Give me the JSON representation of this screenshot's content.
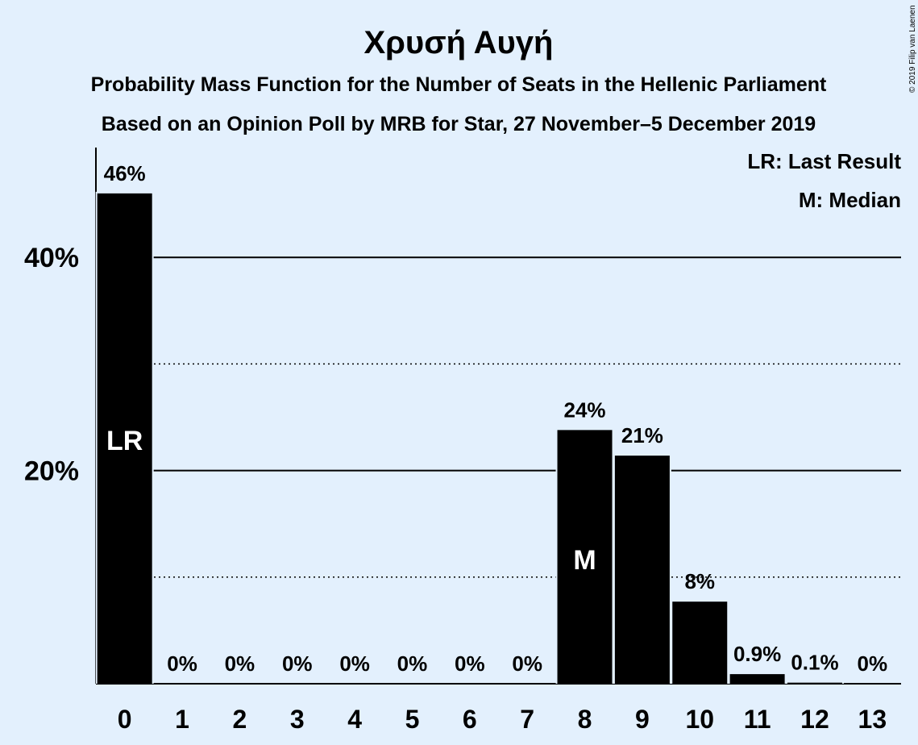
{
  "chart_data": {
    "type": "bar",
    "title": "Χρυσή Αυγή",
    "subtitle_1": "Probability Mass Function for the Number of Seats in the Hellenic Parliament",
    "subtitle_2": "Based on an Opinion Poll by MRB for Star, 27 November–5 December 2019",
    "categories": [
      "0",
      "1",
      "2",
      "3",
      "4",
      "5",
      "6",
      "7",
      "8",
      "9",
      "10",
      "11",
      "12",
      "13"
    ],
    "values": [
      46,
      0,
      0,
      0,
      0,
      0,
      0,
      0,
      23.8,
      21.4,
      7.7,
      0.9,
      0.1,
      0
    ],
    "value_labels": [
      "46%",
      "0%",
      "0%",
      "0%",
      "0%",
      "0%",
      "0%",
      "0%",
      "24%",
      "21%",
      "8%",
      "0.9%",
      "0.1%",
      "0%"
    ],
    "y_ticks": [
      {
        "value": 20,
        "label": "20%"
      },
      {
        "value": 40,
        "label": "40%"
      }
    ],
    "minor_gridlines": [
      10,
      30
    ],
    "ylim": [
      0,
      50
    ],
    "grid": true,
    "legend_placement": "top-right",
    "legend": [
      "LR: Last Result",
      "M: Median"
    ],
    "markers": [
      {
        "category": "0",
        "label": "LR"
      },
      {
        "category": "8",
        "label": "M"
      }
    ],
    "bar_color": "#000000",
    "background_color": "#e3f0fd",
    "copyright": "© 2019 Filip van Laenen"
  }
}
